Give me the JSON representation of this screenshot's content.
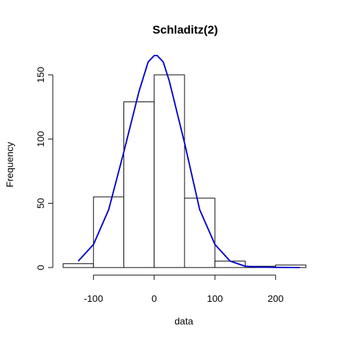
{
  "chart_data": {
    "type": "bar",
    "title": "Schladitz(2)",
    "xlabel": "data",
    "ylabel": "Frequency",
    "bins": [
      {
        "start": -150,
        "end": -100,
        "count": 3
      },
      {
        "start": -100,
        "end": -50,
        "count": 55
      },
      {
        "start": -50,
        "end": 0,
        "count": 129
      },
      {
        "start": 0,
        "end": 50,
        "count": 150
      },
      {
        "start": 50,
        "end": 100,
        "count": 54
      },
      {
        "start": 100,
        "end": 150,
        "count": 5
      },
      {
        "start": 150,
        "end": 200,
        "count": 1
      },
      {
        "start": 200,
        "end": 250,
        "count": 2
      }
    ],
    "density_curve": {
      "color": "#0000cc",
      "points": [
        [
          -125,
          5
        ],
        [
          -100,
          18
        ],
        [
          -75,
          45
        ],
        [
          -50,
          90
        ],
        [
          -25,
          137
        ],
        [
          -10,
          160
        ],
        [
          0,
          165
        ],
        [
          5,
          165
        ],
        [
          15,
          160
        ],
        [
          25,
          145
        ],
        [
          50,
          97
        ],
        [
          75,
          45
        ],
        [
          100,
          18
        ],
        [
          125,
          5
        ],
        [
          150,
          1
        ],
        [
          175,
          0.3
        ],
        [
          200,
          0.1
        ],
        [
          240,
          0
        ]
      ]
    },
    "xticks": [
      -100,
      0,
      100,
      200
    ],
    "yticks": [
      0,
      50,
      100,
      150
    ],
    "xlim": [
      -150,
      250
    ],
    "ylim": [
      0,
      165
    ]
  }
}
